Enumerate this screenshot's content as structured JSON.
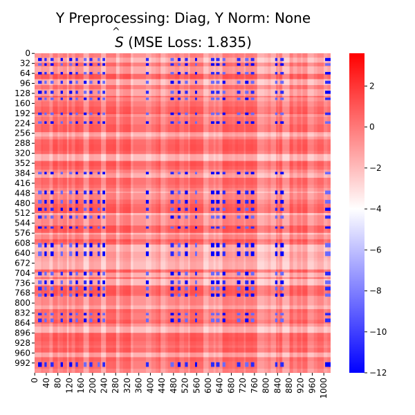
{
  "chart_data": {
    "type": "heatmap",
    "title": "Y Preprocessing: Diag, Y Norm: None",
    "subtitle": "Ŝ (MSE Loss: 1.835)",
    "subtitle_symbol": "S",
    "subtitle_rest": " (MSE Loss: 1.835)",
    "xlabel": "",
    "ylabel": "",
    "matrix_size": 1024,
    "x_ticks": [
      0,
      40,
      80,
      120,
      160,
      200,
      240,
      280,
      320,
      360,
      400,
      440,
      480,
      520,
      560,
      600,
      640,
      680,
      720,
      760,
      800,
      840,
      880,
      920,
      960,
      1000
    ],
    "y_ticks": [
      0,
      32,
      64,
      96,
      128,
      160,
      192,
      224,
      256,
      288,
      320,
      352,
      384,
      416,
      448,
      480,
      512,
      544,
      576,
      608,
      640,
      672,
      704,
      736,
      768,
      800,
      832,
      864,
      896,
      928,
      960,
      992
    ],
    "colorbar": {
      "colormap": "bwr",
      "min": -12,
      "max": 3.6,
      "ticks": [
        2,
        0,
        -2,
        -4,
        -6,
        -8,
        -10,
        -12
      ],
      "colors": {
        "low": "#0000ff",
        "mid": "#ffffff",
        "high": "#ff0000"
      }
    },
    "blue_columns": [
      [
        12,
        25
      ],
      [
        34,
        42
      ],
      [
        55,
        66
      ],
      [
        90,
        98
      ],
      [
        120,
        130
      ],
      [
        142,
        150
      ],
      [
        170,
        180
      ],
      [
        190,
        200
      ],
      [
        218,
        226
      ],
      [
        235,
        244
      ],
      [
        385,
        395
      ],
      [
        470,
        482
      ],
      [
        495,
        505
      ],
      [
        520,
        530
      ],
      [
        555,
        562
      ],
      [
        610,
        622
      ],
      [
        628,
        640
      ],
      [
        650,
        660
      ],
      [
        700,
        712
      ],
      [
        728,
        740
      ],
      [
        748,
        760
      ],
      [
        832,
        840
      ],
      [
        850,
        862
      ],
      [
        1005,
        1024
      ]
    ],
    "blue_rows": [
      [
        15,
        25
      ],
      [
        32,
        40
      ],
      [
        60,
        68
      ],
      [
        88,
        98
      ],
      [
        120,
        130
      ],
      [
        142,
        150
      ],
      [
        190,
        198
      ],
      [
        218,
        226
      ],
      [
        380,
        388
      ],
      [
        440,
        452
      ],
      [
        470,
        482
      ],
      [
        495,
        505
      ],
      [
        520,
        530
      ],
      [
        555,
        562
      ],
      [
        608,
        622
      ],
      [
        635,
        650
      ],
      [
        700,
        712
      ],
      [
        728,
        740
      ],
      [
        748,
        760
      ],
      [
        770,
        780
      ],
      [
        832,
        840
      ],
      [
        850,
        862
      ],
      [
        990,
        1005
      ]
    ]
  }
}
